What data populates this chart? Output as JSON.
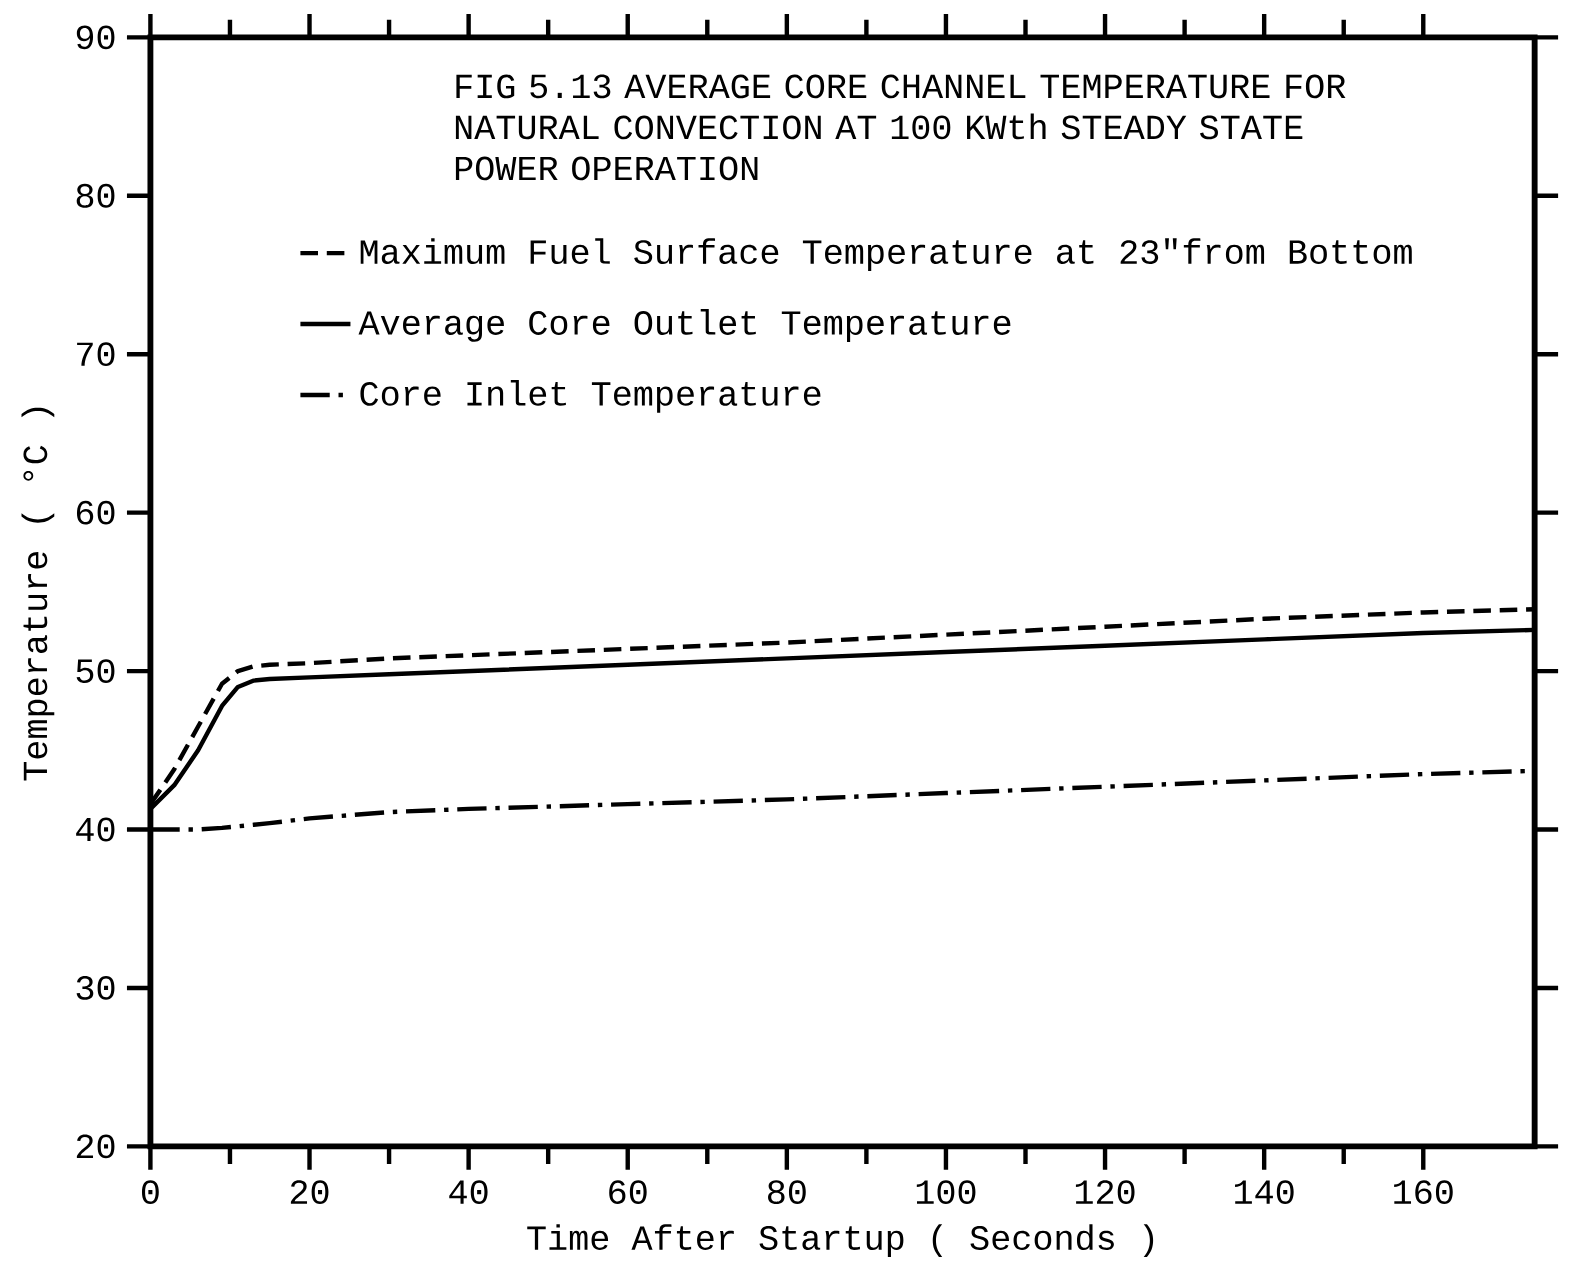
{
  "chart_data": {
    "type": "line",
    "title": "FIG 5.13 AVERAGE CORE CHANNEL TEMPERATURE FOR NATURAL CONVECTION AT 100 KWth STEADY STATE POWER OPERATION",
    "xlabel": "Time After  Startup ( Seconds )",
    "ylabel": "Temperature ( °C )",
    "x": [
      0,
      3,
      6,
      9,
      11,
      13,
      15,
      20,
      30,
      40,
      60,
      80,
      100,
      120,
      140,
      160,
      174
    ],
    "series": [
      {
        "name": "Maximum Fuel Surface Temperature at 23\"from Bottom",
        "color": "#000000",
        "line_style": "dashed",
        "values": [
          41.6,
          43.8,
          46.5,
          49.2,
          50.0,
          50.3,
          50.4,
          50.5,
          50.8,
          51.0,
          51.4,
          51.8,
          52.3,
          52.8,
          53.3,
          53.7,
          53.9
        ]
      },
      {
        "name": "Average Core Outlet Temperature",
        "color": "#000000",
        "line_style": "solid",
        "values": [
          41.3,
          42.8,
          45.0,
          47.8,
          49.0,
          49.4,
          49.5,
          49.6,
          49.8,
          50.0,
          50.4,
          50.8,
          51.2,
          51.6,
          52.0,
          52.4,
          52.6
        ]
      },
      {
        "name": "Core Inlet Temperature",
        "color": "#000000",
        "line_style": "dashdot",
        "values": [
          40.0,
          40.0,
          40.0,
          40.1,
          40.2,
          40.3,
          40.4,
          40.7,
          41.1,
          41.3,
          41.6,
          41.9,
          42.3,
          42.7,
          43.1,
          43.5,
          43.7
        ]
      }
    ],
    "xlim": [
      0,
      174
    ],
    "ylim": [
      20,
      90
    ],
    "xticks": [
      0,
      20,
      40,
      60,
      80,
      100,
      120,
      140,
      160
    ],
    "yticks": [
      20,
      30,
      40,
      50,
      60,
      70,
      80,
      90
    ],
    "grid": false,
    "legend": "top left",
    "marker": "none"
  }
}
